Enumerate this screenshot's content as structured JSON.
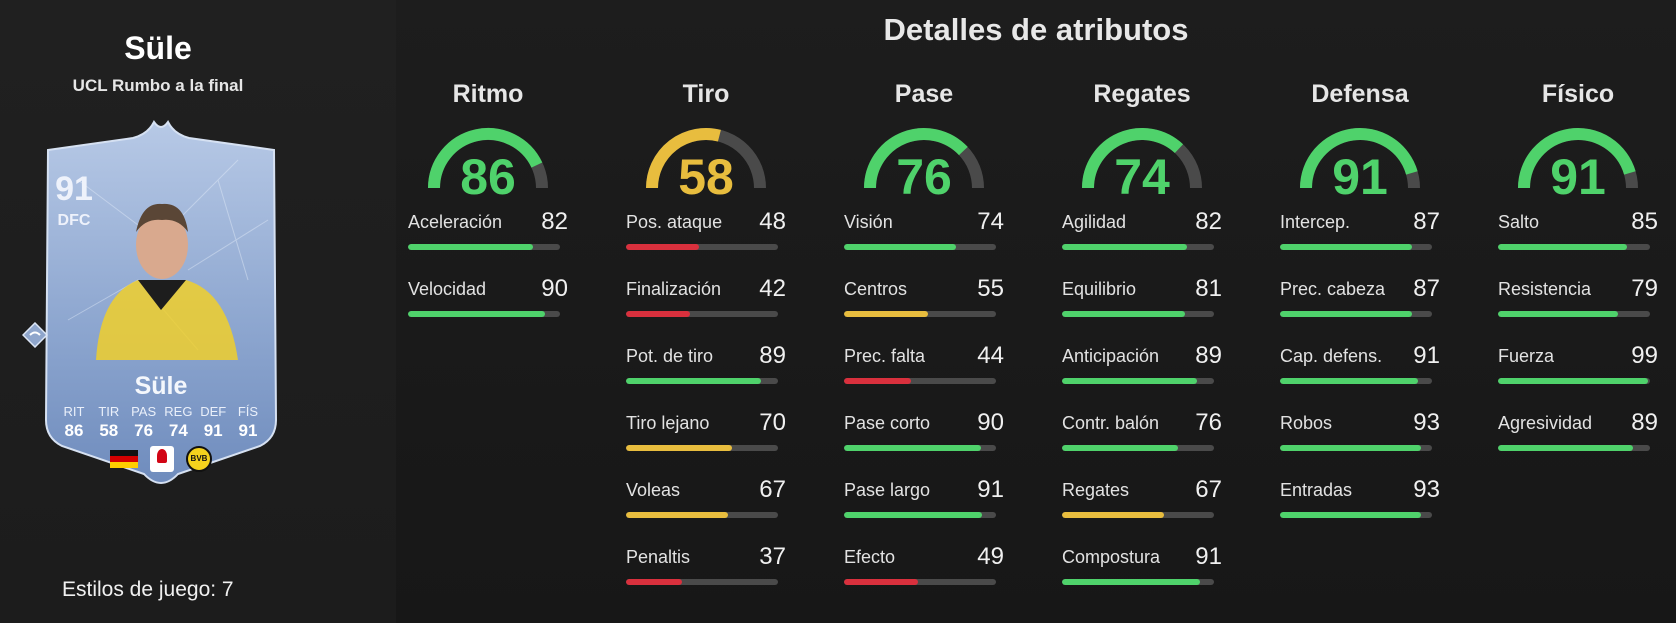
{
  "colors": {
    "green": "#4fd26b",
    "yellow": "#e8bd3e",
    "red": "#d9303d",
    "track": "#4a4a4a",
    "card": "#9bb3d8"
  },
  "player": {
    "name": "Süle",
    "subtitle": "UCL Rumbo a la final",
    "styles_label": "Estilos de juego: 7"
  },
  "card": {
    "rating": "91",
    "position": "DFC",
    "name": "Süle",
    "club_initials": "BVB",
    "stats": [
      {
        "label": "RIT",
        "value": "86"
      },
      {
        "label": "TIR",
        "value": "58"
      },
      {
        "label": "PAS",
        "value": "76"
      },
      {
        "label": "REG",
        "value": "74"
      },
      {
        "label": "DEF",
        "value": "91"
      },
      {
        "label": "FÍS",
        "value": "91"
      }
    ]
  },
  "title": "Detalles de atributos",
  "categories": [
    {
      "name": "Ritmo",
      "value": 86,
      "value_text": "86",
      "color": "green",
      "stats": [
        {
          "name": "Aceleración",
          "value": 82,
          "value_text": "82",
          "color": "green"
        },
        {
          "name": "Velocidad",
          "value": 90,
          "value_text": "90",
          "color": "green"
        }
      ]
    },
    {
      "name": "Tiro",
      "value": 58,
      "value_text": "58",
      "color": "yellow",
      "stats": [
        {
          "name": "Pos. ataque",
          "value": 48,
          "value_text": "48",
          "color": "red"
        },
        {
          "name": "Finalización",
          "value": 42,
          "value_text": "42",
          "color": "red"
        },
        {
          "name": "Pot. de tiro",
          "value": 89,
          "value_text": "89",
          "color": "green"
        },
        {
          "name": "Tiro lejano",
          "value": 70,
          "value_text": "70",
          "color": "yellow"
        },
        {
          "name": "Voleas",
          "value": 67,
          "value_text": "67",
          "color": "yellow"
        },
        {
          "name": "Penaltis",
          "value": 37,
          "value_text": "37",
          "color": "red"
        }
      ]
    },
    {
      "name": "Pase",
      "value": 76,
      "value_text": "76",
      "color": "green",
      "stats": [
        {
          "name": "Visión",
          "value": 74,
          "value_text": "74",
          "color": "green"
        },
        {
          "name": "Centros",
          "value": 55,
          "value_text": "55",
          "color": "yellow"
        },
        {
          "name": "Prec. falta",
          "value": 44,
          "value_text": "44",
          "color": "red"
        },
        {
          "name": "Pase corto",
          "value": 90,
          "value_text": "90",
          "color": "green"
        },
        {
          "name": "Pase largo",
          "value": 91,
          "value_text": "91",
          "color": "green"
        },
        {
          "name": "Efecto",
          "value": 49,
          "value_text": "49",
          "color": "red"
        }
      ]
    },
    {
      "name": "Regates",
      "value": 74,
      "value_text": "74",
      "color": "green",
      "stats": [
        {
          "name": "Agilidad",
          "value": 82,
          "value_text": "82",
          "color": "green"
        },
        {
          "name": "Equilibrio",
          "value": 81,
          "value_text": "81",
          "color": "green"
        },
        {
          "name": "Anticipación",
          "value": 89,
          "value_text": "89",
          "color": "green"
        },
        {
          "name": "Contr. balón",
          "value": 76,
          "value_text": "76",
          "color": "green"
        },
        {
          "name": "Regates",
          "value": 67,
          "value_text": "67",
          "color": "yellow"
        },
        {
          "name": "Compostura",
          "value": 91,
          "value_text": "91",
          "color": "green"
        }
      ]
    },
    {
      "name": "Defensa",
      "value": 91,
      "value_text": "91",
      "color": "green",
      "stats": [
        {
          "name": "Intercep.",
          "value": 87,
          "value_text": "87",
          "color": "green"
        },
        {
          "name": "Prec. cabeza",
          "value": 87,
          "value_text": "87",
          "color": "green"
        },
        {
          "name": "Cap. defens.",
          "value": 91,
          "value_text": "91",
          "color": "green"
        },
        {
          "name": "Robos",
          "value": 93,
          "value_text": "93",
          "color": "green"
        },
        {
          "name": "Entradas",
          "value": 93,
          "value_text": "93",
          "color": "green"
        }
      ]
    },
    {
      "name": "Físico",
      "value": 91,
      "value_text": "91",
      "color": "green",
      "stats": [
        {
          "name": "Salto",
          "value": 85,
          "value_text": "85",
          "color": "green"
        },
        {
          "name": "Resistencia",
          "value": 79,
          "value_text": "79",
          "color": "green"
        },
        {
          "name": "Fuerza",
          "value": 99,
          "value_text": "99",
          "color": "green"
        },
        {
          "name": "Agresividad",
          "value": 89,
          "value_text": "89",
          "color": "green"
        }
      ]
    }
  ]
}
